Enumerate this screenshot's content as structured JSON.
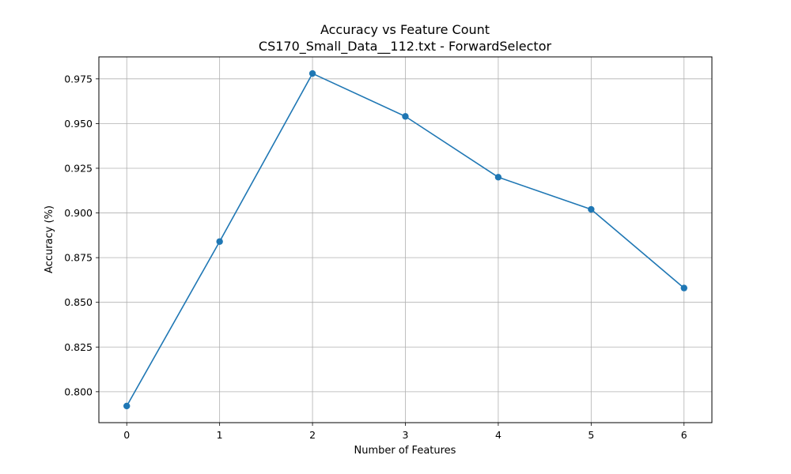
{
  "chart_data": {
    "type": "line",
    "title": "Accuracy vs Feature Count",
    "subtitle": "CS170_Small_Data__112.txt - ForwardSelector",
    "xlabel": "Number of Features",
    "ylabel": "Accuracy (%)",
    "x": [
      0,
      1,
      2,
      3,
      4,
      5,
      6
    ],
    "x_tick_labels": [
      "0",
      "1",
      "2",
      "3",
      "4",
      "5",
      "6"
    ],
    "xlim": [
      -0.3,
      6.3
    ],
    "y_ticks": [
      0.8,
      0.825,
      0.85,
      0.875,
      0.9,
      0.925,
      0.95,
      0.975
    ],
    "y_tick_labels": [
      "0.800",
      "0.825",
      "0.850",
      "0.875",
      "0.900",
      "0.925",
      "0.950",
      "0.975"
    ],
    "ylim": [
      0.7827,
      0.9873
    ],
    "grid": true,
    "marker": "circle",
    "series": [
      {
        "values": [
          0.792,
          0.884,
          0.978,
          0.954,
          0.92,
          0.902,
          0.858
        ],
        "color": "#1f77b4"
      }
    ]
  }
}
